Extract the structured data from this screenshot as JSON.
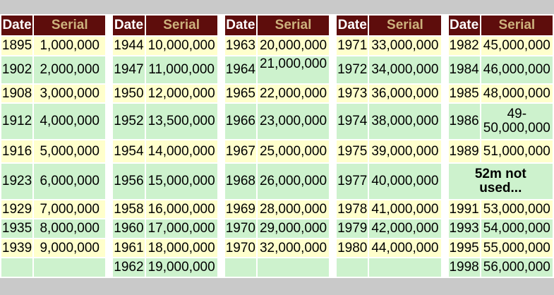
{
  "colors": {
    "header_bg": "#5e0d0c",
    "header_date_text": "#ffffff",
    "header_serial_text": "#cdb27d",
    "row_yellow": "#ffffcc",
    "row_green": "#cdf2cd",
    "cell_gap_white": "#ffffff",
    "frame_gray": "#c9c9c9",
    "body_text": "#000000"
  },
  "table": {
    "column_headers": {
      "date": "Date",
      "serial": "Serial"
    },
    "groups": [
      {
        "rows": [
          {
            "date": "1895",
            "serial": "1,000,000"
          },
          {
            "date": "1902",
            "serial": "2,000,000"
          },
          {
            "date": "1908",
            "serial": "3,000,000"
          },
          {
            "date": "1912",
            "serial": "4,000,000"
          },
          {
            "date": "1916",
            "serial": "5,000,000"
          },
          {
            "date": "1923",
            "serial": "6,000,000"
          },
          {
            "date": "1929",
            "serial": "7,000,000"
          },
          {
            "date": "1935",
            "serial": "8,000,000"
          },
          {
            "date": "1939",
            "serial": "9,000,000"
          },
          {
            "date": "",
            "serial": ""
          }
        ]
      },
      {
        "rows": [
          {
            "date": "1944",
            "serial": "10,000,000"
          },
          {
            "date": "1947",
            "serial": "11,000,000"
          },
          {
            "date": "1950",
            "serial": "12,000,000"
          },
          {
            "date": "1952",
            "serial": "13,500,000"
          },
          {
            "date": "1954",
            "serial": "14,000,000"
          },
          {
            "date": "1956",
            "serial": "15,000,000"
          },
          {
            "date": "1958",
            "serial": "16,000,000"
          },
          {
            "date": "1960",
            "serial": "17,000,000"
          },
          {
            "date": "1961",
            "serial": "18,000,000"
          },
          {
            "date": "1962",
            "serial": "19,000,000"
          }
        ]
      },
      {
        "rows": [
          {
            "date": "1963",
            "serial": "20,000,000"
          },
          {
            "date": "1964",
            "serial": "21,000,000"
          },
          {
            "date": "1965",
            "serial": "22,000,000"
          },
          {
            "date": "1966",
            "serial": "23,000,000"
          },
          {
            "date": "1967",
            "serial": "25,000,000"
          },
          {
            "date": "1968",
            "serial": "26,000,000"
          },
          {
            "date": "1969",
            "serial": "28,000,000"
          },
          {
            "date": "1970",
            "serial": "29,000,000"
          },
          {
            "date": "1970",
            "serial": "32,000,000"
          },
          {
            "date": "",
            "serial": ""
          }
        ]
      },
      {
        "rows": [
          {
            "date": "1971",
            "serial": "33,000,000"
          },
          {
            "date": "1972",
            "serial": "34,000,000"
          },
          {
            "date": "1973",
            "serial": "36,000,000"
          },
          {
            "date": "1974",
            "serial": "38,000,000"
          },
          {
            "date": "1975",
            "serial": "39,000,000"
          },
          {
            "date": "1977",
            "serial": "40,000,000"
          },
          {
            "date": "1978",
            "serial": "41,000,000"
          },
          {
            "date": "1979",
            "serial": "42,000,000"
          },
          {
            "date": "1980",
            "serial": "44,000,000"
          },
          {
            "date": "",
            "serial": ""
          }
        ]
      },
      {
        "rows": [
          {
            "date": "1982",
            "serial": "45,000,000"
          },
          {
            "date": "1984",
            "serial": "46,000,000"
          },
          {
            "date": "1985",
            "serial": "48,000,000"
          },
          {
            "date": "1986",
            "serial": "49-50,000,000"
          },
          {
            "date": "1989",
            "serial": "51,000,000"
          },
          {
            "note": "52m not used..."
          },
          {
            "date": "1991",
            "serial": "53,000,000"
          },
          {
            "date": "1993",
            "serial": "54,000,000"
          },
          {
            "date": "1995",
            "serial": "55,000,000"
          },
          {
            "date": "1998",
            "serial": "56,000,000"
          }
        ]
      }
    ]
  }
}
